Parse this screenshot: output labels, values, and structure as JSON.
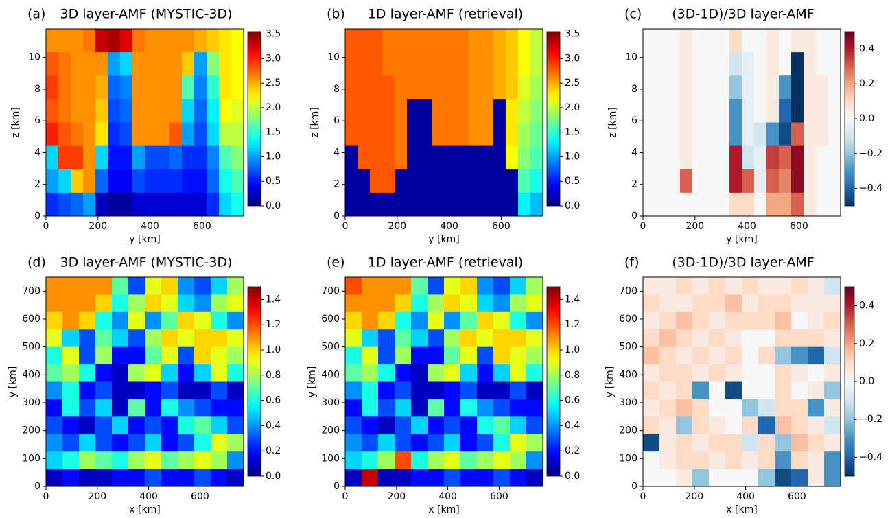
{
  "chart_data": [
    {
      "type": "heatmap",
      "panel_label": "(a)",
      "title": "3D layer-AMF (MYSTIC-3D)",
      "xlabel": "y [km]",
      "ylabel": "z [km]",
      "xlim": [
        0,
        760
      ],
      "ylim": [
        0,
        11.8
      ],
      "xticks": [
        0,
        200,
        400,
        600
      ],
      "yticks": [
        0,
        2,
        4,
        6,
        8,
        10
      ],
      "colormap": "jet",
      "clim": [
        0,
        3.55
      ],
      "cticks": [
        {
          "value": 0,
          "label": "0.0"
        },
        0.5,
        {
          "value": 1,
          "label": "1.0"
        },
        1.5,
        {
          "value": 2,
          "label": "2.0"
        },
        2.5,
        {
          "value": 3,
          "label": "3.0"
        },
        3.5
      ],
      "values": [
        [
          2.6,
          2.6,
          2.6,
          2.7,
          3.3,
          3.4,
          3.2,
          2.7,
          2.6,
          2.6,
          2.6,
          2.6,
          2.5,
          2.4,
          2.3,
          2.2
        ],
        [
          2.8,
          2.7,
          2.6,
          2.6,
          2.6,
          1.0,
          1.2,
          2.6,
          2.6,
          2.6,
          2.6,
          2.4,
          1.0,
          1.8,
          2.3,
          2.2
        ],
        [
          2.9,
          2.7,
          2.6,
          2.6,
          2.5,
          0.8,
          0.9,
          2.6,
          2.6,
          2.6,
          2.6,
          1.6,
          0.9,
          1.5,
          2.3,
          2.2
        ],
        [
          2.8,
          2.7,
          2.6,
          2.6,
          2.4,
          0.7,
          0.8,
          2.6,
          2.6,
          2.6,
          2.6,
          1.2,
          0.8,
          1.3,
          2.2,
          2.1
        ],
        [
          3.0,
          2.8,
          2.7,
          2.6,
          2.3,
          0.6,
          0.7,
          2.6,
          2.6,
          2.6,
          2.8,
          1.0,
          0.7,
          1.2,
          2.0,
          2.0
        ],
        [
          1.2,
          2.9,
          2.9,
          2.6,
          1.2,
          0.5,
          0.5,
          1.0,
          0.7,
          0.7,
          0.8,
          0.6,
          0.6,
          0.9,
          1.6,
          1.8
        ],
        [
          1.0,
          1.2,
          2.4,
          2.6,
          0.8,
          0.4,
          0.4,
          0.7,
          0.6,
          0.6,
          0.6,
          0.5,
          0.5,
          0.8,
          1.4,
          1.6
        ],
        [
          0.6,
          0.7,
          0.8,
          1.0,
          0.2,
          0.1,
          0.1,
          0.3,
          0.3,
          0.3,
          0.3,
          0.3,
          0.3,
          0.6,
          1.2,
          1.4
        ]
      ]
    },
    {
      "type": "heatmap",
      "panel_label": "(b)",
      "title": "1D layer-AMF (retrieval)",
      "xlabel": "y [km]",
      "ylabel": "z [km]",
      "xlim": [
        0,
        760
      ],
      "ylim": [
        0,
        11.8
      ],
      "xticks": [
        0,
        200,
        400,
        600
      ],
      "yticks": [
        0,
        2,
        4,
        6,
        8,
        10
      ],
      "colormap": "jet",
      "clim": [
        0,
        3.55
      ],
      "cticks": [
        {
          "value": 0,
          "label": "0.0"
        },
        0.5,
        {
          "value": 1,
          "label": "1.0"
        },
        1.5,
        {
          "value": 2,
          "label": "2.0"
        },
        2.5,
        {
          "value": 3,
          "label": "3.0"
        },
        3.5
      ],
      "values": [
        [
          2.8,
          2.8,
          2.8,
          2.7,
          2.7,
          2.7,
          2.7,
          2.7,
          2.7,
          2.7,
          2.6,
          2.6,
          2.5,
          2.4,
          2.2,
          2.0
        ],
        [
          2.8,
          2.8,
          2.8,
          2.7,
          2.7,
          2.7,
          2.7,
          2.7,
          2.7,
          2.7,
          2.6,
          2.6,
          2.5,
          2.4,
          2.2,
          2.0
        ],
        [
          2.8,
          2.8,
          2.8,
          2.8,
          2.7,
          2.7,
          2.7,
          2.7,
          2.7,
          2.7,
          2.6,
          2.6,
          2.5,
          2.4,
          2.1,
          1.9
        ],
        [
          2.8,
          2.8,
          2.8,
          2.8,
          2.7,
          0.1,
          0.1,
          2.7,
          2.7,
          2.7,
          2.6,
          2.6,
          0.1,
          2.3,
          2.0,
          1.8
        ],
        [
          2.8,
          2.8,
          2.8,
          2.8,
          2.7,
          0.1,
          0.1,
          2.7,
          2.7,
          2.7,
          2.6,
          2.6,
          0.1,
          2.3,
          1.9,
          1.7
        ],
        [
          0.1,
          2.8,
          2.8,
          2.8,
          2.7,
          0.1,
          0.1,
          0.1,
          0.1,
          0.1,
          0.1,
          0.1,
          0.1,
          2.2,
          1.8,
          1.6
        ],
        [
          0.1,
          0.1,
          2.8,
          2.8,
          0.1,
          0.1,
          0.1,
          0.1,
          0.1,
          0.1,
          0.1,
          0.1,
          0.1,
          0.1,
          1.6,
          1.4
        ],
        [
          0.1,
          0.1,
          0.1,
          0.1,
          0.1,
          0.1,
          0.1,
          0.1,
          0.1,
          0.1,
          0.1,
          0.1,
          0.1,
          0.1,
          1.3,
          1.1
        ]
      ]
    },
    {
      "type": "heatmap",
      "panel_label": "(c)",
      "title": "(3D-1D)/3D layer-AMF",
      "xlabel": "y [km]",
      "ylabel": "z [km]",
      "xlim": [
        0,
        760
      ],
      "ylim": [
        0,
        11.8
      ],
      "xticks": [
        0,
        200,
        400,
        600
      ],
      "yticks": [
        0,
        2,
        4,
        6,
        8,
        10
      ],
      "colormap": "RdBu_r",
      "clim": [
        -0.5,
        0.5
      ],
      "cticks": [
        {
          "value": -0.4,
          "label": "−0.4"
        },
        {
          "value": -0.2,
          "label": "−0.2"
        },
        {
          "value": 0,
          "label": "0.0"
        },
        0.2,
        0.4
      ],
      "values": [
        [
          0,
          0,
          0,
          0.05,
          0,
          0,
          0,
          0.1,
          0,
          0,
          0.05,
          0,
          0.05,
          0.05,
          0,
          0
        ],
        [
          0,
          0,
          0,
          0.05,
          0,
          0,
          0,
          -0.1,
          -0.05,
          0,
          0.05,
          0,
          -0.5,
          0.05,
          0,
          0
        ],
        [
          0,
          0,
          0,
          0.05,
          0,
          0,
          0,
          -0.2,
          -0.05,
          0,
          0.05,
          -0.3,
          -0.5,
          0.05,
          0.05,
          0
        ],
        [
          0,
          0,
          0,
          0.05,
          0,
          0,
          0,
          -0.3,
          -0.05,
          0,
          0.05,
          -0.4,
          -0.5,
          0.05,
          0.05,
          0
        ],
        [
          0,
          0,
          0,
          0.05,
          0,
          0,
          0,
          -0.3,
          -0.05,
          -0.1,
          -0.3,
          -0.45,
          0.3,
          0.05,
          0.05,
          0
        ],
        [
          0,
          0,
          0,
          0.05,
          0,
          0,
          0,
          0.4,
          -0.1,
          -0.05,
          0.35,
          0.3,
          0.45,
          0.05,
          0,
          0
        ],
        [
          0,
          0,
          0,
          0.3,
          0,
          0,
          0,
          0.4,
          0.3,
          -0.05,
          0.3,
          0.25,
          0.45,
          0.05,
          0,
          0
        ],
        [
          0,
          0,
          0,
          0,
          0,
          0,
          0,
          0.1,
          0.1,
          0,
          0.2,
          0.2,
          0.3,
          0.05,
          0,
          0
        ]
      ]
    },
    {
      "type": "heatmap",
      "panel_label": "(d)",
      "title": "3D layer-AMF (MYSTIC-3D)",
      "xlabel": "x [km]",
      "ylabel": "y [km]",
      "xlim": [
        0,
        770
      ],
      "ylim": [
        0,
        750
      ],
      "xticks": [
        0,
        200,
        400,
        600
      ],
      "yticks": [
        0,
        100,
        200,
        300,
        400,
        500,
        600,
        700
      ],
      "colormap": "jet",
      "clim": [
        0,
        1.5
      ],
      "cticks": [
        {
          "value": 0,
          "label": "0.0"
        },
        0.2,
        0.4,
        0.6,
        0.8,
        {
          "value": 1,
          "label": "1.0"
        },
        1.2,
        1.4
      ],
      "values": [
        [
          1.1,
          1.1,
          1.1,
          1.1,
          0.7,
          0.3,
          0.9,
          1.0,
          0.4,
          0.3,
          0.5,
          0.8
        ],
        [
          1.1,
          1.1,
          1.1,
          1.0,
          0.6,
          0.8,
          1.0,
          0.9,
          0.5,
          0.4,
          0.8,
          0.9
        ],
        [
          1.0,
          1.1,
          1.0,
          0.6,
          0.4,
          0.9,
          0.4,
          0.7,
          1.0,
          0.9,
          0.6,
          0.4
        ],
        [
          0.9,
          0.5,
          0.3,
          0.7,
          0.5,
          0.3,
          0.8,
          1.0,
          0.9,
          1.0,
          1.0,
          0.9
        ],
        [
          0.6,
          0.9,
          0.3,
          0.8,
          0.2,
          0.2,
          0.7,
          0.9,
          0.3,
          1.0,
          0.9,
          0.8
        ],
        [
          0.7,
          0.8,
          0.6,
          0.2,
          0.1,
          0.8,
          0.9,
          0.5,
          0.2,
          0.5,
          0.9,
          0.6
        ],
        [
          0.4,
          0.6,
          0.2,
          0.3,
          0.1,
          0.1,
          0.2,
          0.3,
          0.1,
          0.1,
          0.3,
          0.1
        ],
        [
          0.2,
          0.6,
          0.3,
          0.5,
          0.1,
          0.7,
          0.2,
          0.6,
          0.4,
          0.3,
          0.2,
          0.2
        ],
        [
          0.3,
          0.2,
          0.1,
          0.3,
          0.5,
          0.2,
          0.3,
          0.2,
          0.6,
          0.7,
          0.5,
          0.3
        ],
        [
          0.4,
          0.3,
          0.5,
          0.3,
          0.2,
          0.3,
          0.5,
          0.2,
          0.3,
          0.6,
          0.9,
          0.8
        ],
        [
          0.5,
          0.6,
          0.8,
          0.7,
          0.6,
          0.8,
          0.9,
          0.7,
          0.8,
          0.9,
          0.8,
          0.4
        ],
        [
          0.1,
          0.2,
          0.1,
          0.1,
          0.2,
          0.2,
          0.3,
          0.2,
          0.2,
          0.3,
          0.2,
          0.1
        ]
      ]
    },
    {
      "type": "heatmap",
      "panel_label": "(e)",
      "title": "1D layer-AMF (retrieval)",
      "xlabel": "x [km]",
      "ylabel": "y [km]",
      "xlim": [
        0,
        770
      ],
      "ylim": [
        0,
        750
      ],
      "xticks": [
        0,
        200,
        400,
        600
      ],
      "yticks": [
        0,
        100,
        200,
        300,
        400,
        500,
        600,
        700
      ],
      "colormap": "jet",
      "clim": [
        0,
        1.5
      ],
      "cticks": [
        {
          "value": 0,
          "label": "0.0"
        },
        0.2,
        0.4,
        0.6,
        0.8,
        {
          "value": 1,
          "label": "1.0"
        },
        1.2,
        1.4
      ],
      "values": [
        [
          1.2,
          1.1,
          1.1,
          1.1,
          0.7,
          0.3,
          0.9,
          1.0,
          0.4,
          0.3,
          0.5,
          0.8
        ],
        [
          1.1,
          1.1,
          1.1,
          1.0,
          0.6,
          0.8,
          1.0,
          0.9,
          0.5,
          0.4,
          0.8,
          0.9
        ],
        [
          1.0,
          1.1,
          1.0,
          0.6,
          0.4,
          0.9,
          0.4,
          0.7,
          1.0,
          0.9,
          0.6,
          0.4
        ],
        [
          0.9,
          0.5,
          0.3,
          0.7,
          0.5,
          0.3,
          0.8,
          1.0,
          0.9,
          1.0,
          1.0,
          0.9
        ],
        [
          0.6,
          0.9,
          0.3,
          0.8,
          0.2,
          0.2,
          0.7,
          0.9,
          0.3,
          1.0,
          0.9,
          0.8
        ],
        [
          0.7,
          0.8,
          0.6,
          0.2,
          0.1,
          0.8,
          0.9,
          0.5,
          0.2,
          0.5,
          0.9,
          0.6
        ],
        [
          0.4,
          0.6,
          0.2,
          0.3,
          0.1,
          0.1,
          0.2,
          0.3,
          0.1,
          0.1,
          0.3,
          0.1
        ],
        [
          0.2,
          0.6,
          0.3,
          0.5,
          0.1,
          0.7,
          0.2,
          0.6,
          0.4,
          0.3,
          0.2,
          0.2
        ],
        [
          0.3,
          0.2,
          0.1,
          0.3,
          0.5,
          0.2,
          0.3,
          0.2,
          0.6,
          0.7,
          0.5,
          0.3
        ],
        [
          0.4,
          0.3,
          0.5,
          0.3,
          0.2,
          0.3,
          0.5,
          0.2,
          0.3,
          0.6,
          0.9,
          0.8
        ],
        [
          0.5,
          0.6,
          0.8,
          1.2,
          0.6,
          0.8,
          0.9,
          0.7,
          0.8,
          0.9,
          0.8,
          0.4
        ],
        [
          0.1,
          1.4,
          0.1,
          0.1,
          0.2,
          0.2,
          0.3,
          0.2,
          0.2,
          0.3,
          0.2,
          0.1
        ]
      ]
    },
    {
      "type": "heatmap",
      "panel_label": "(f)",
      "title": "(3D-1D)/3D layer-AMF",
      "xlabel": "x [km]",
      "ylabel": "y [km]",
      "xlim": [
        0,
        770
      ],
      "ylim": [
        0,
        750
      ],
      "xticks": [
        0,
        200,
        400,
        600
      ],
      "yticks": [
        0,
        100,
        200,
        300,
        400,
        500,
        600,
        700
      ],
      "colormap": "RdBu_r",
      "clim": [
        -0.5,
        0.5
      ],
      "cticks": [
        {
          "value": -0.4,
          "label": "−0.4"
        },
        {
          "value": -0.2,
          "label": "−0.2"
        },
        {
          "value": 0,
          "label": "0.0"
        },
        0.2,
        0.4
      ],
      "values": [
        [
          0.05,
          0.05,
          0.1,
          0.05,
          0.1,
          0.05,
          0.1,
          0.05,
          0.05,
          0.1,
          0.05,
          -0.1
        ],
        [
          0.1,
          0.05,
          0.05,
          0.1,
          0.1,
          0.15,
          0.05,
          0.1,
          0.1,
          0.05,
          0.05,
          0.05
        ],
        [
          0.05,
          0.1,
          0.15,
          0.1,
          0.05,
          0.1,
          0.1,
          0.1,
          0.15,
          0,
          0.05,
          0.1
        ],
        [
          0.1,
          0.15,
          0.1,
          0.05,
          0.1,
          0.05,
          0,
          0,
          0.1,
          0.1,
          0.1,
          0.05
        ],
        [
          0.15,
          0.1,
          0.05,
          0.1,
          0.05,
          0.1,
          0,
          0.1,
          -0.2,
          -0.3,
          -0.4,
          -0.1
        ],
        [
          0.05,
          0.1,
          0.1,
          0.05,
          0.1,
          0.05,
          0,
          0,
          0.1,
          0.05,
          0,
          0.05
        ],
        [
          0.1,
          0.05,
          0.1,
          -0.3,
          0,
          -0.45,
          0,
          0,
          0.1,
          0,
          0.05,
          -0.2
        ],
        [
          0.05,
          0.1,
          0.15,
          0.1,
          0,
          0,
          -0.2,
          -0.1,
          0.1,
          0.1,
          -0.3,
          0.05
        ],
        [
          0.1,
          0.05,
          -0.2,
          0.1,
          0.05,
          0,
          0.1,
          -0.4,
          0.15,
          0.1,
          0.05,
          -0.1
        ],
        [
          -0.45,
          0.05,
          0.1,
          0.05,
          0.1,
          0.1,
          -0.1,
          0.1,
          -0.2,
          0.15,
          0.1,
          0.05
        ],
        [
          0,
          0.05,
          0.1,
          0.1,
          0.05,
          0.1,
          0.05,
          0.1,
          -0.3,
          0.1,
          0.05,
          -0.3
        ],
        [
          0,
          0,
          0.05,
          -0.2,
          0,
          0,
          0,
          -0.2,
          -0.45,
          -0.4,
          0.05,
          -0.3
        ]
      ]
    }
  ]
}
